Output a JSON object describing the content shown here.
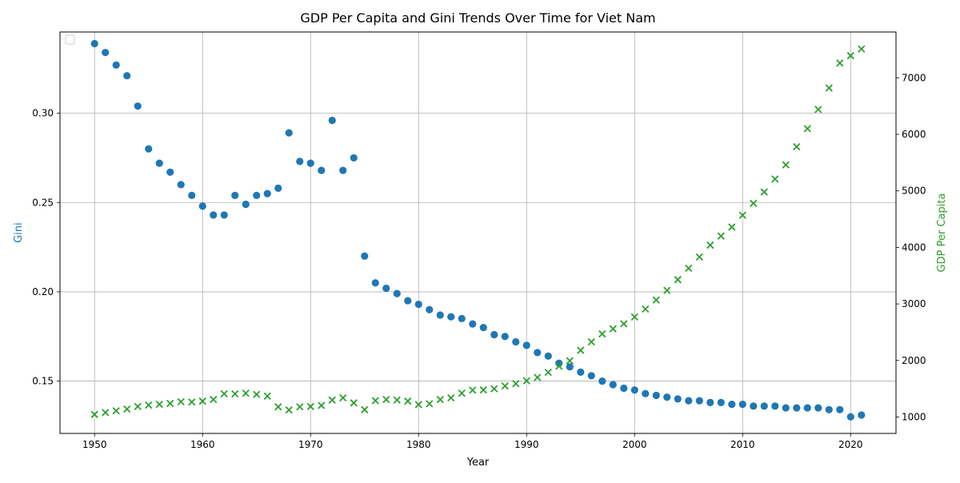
{
  "chart_data": {
    "type": "scatter",
    "title": "GDP Per Capita and Gini Trends Over Time for Viet Nam",
    "xlabel": "Year",
    "ylabel_left": "Gini",
    "ylabel_right": "GDP Per Capita",
    "xlim": [
      1946.8,
      2024.2
    ],
    "ylim_left": [
      0.1207,
      0.3455
    ],
    "ylim_right": [
      710,
      7810
    ],
    "x_ticks": [
      1950,
      1960,
      1970,
      1980,
      1990,
      2000,
      2010,
      2020
    ],
    "y_ticks_left": [
      0.15,
      0.2,
      0.25,
      0.3
    ],
    "y_ticks_right": [
      1000,
      2000,
      3000,
      4000,
      5000,
      6000,
      7000
    ],
    "grid": true,
    "legend": "top-left (empty)",
    "colors": {
      "gini": "#1f77b4",
      "gdp": "#2ca02c"
    },
    "series": [
      {
        "metric": "gini",
        "marker": "circle",
        "color": "#1f77b4",
        "axis": "left",
        "x": [
          1950,
          1951,
          1952,
          1953,
          1954,
          1955,
          1956,
          1957,
          1958,
          1959,
          1960,
          1961,
          1962,
          1963,
          1964,
          1965,
          1966,
          1967,
          1968,
          1969,
          1970,
          1971,
          1972,
          1973,
          1974,
          1975,
          1976,
          1977,
          1978,
          1979,
          1980,
          1981,
          1982,
          1983,
          1984,
          1985,
          1986,
          1987,
          1988,
          1989,
          1990,
          1991,
          1992,
          1993,
          1994,
          1995,
          1996,
          1997,
          1998,
          1999,
          2000,
          2001,
          2002,
          2003,
          2004,
          2005,
          2006,
          2007,
          2008,
          2009,
          2010,
          2011,
          2012,
          2013,
          2014,
          2015,
          2016,
          2017,
          2018,
          2019,
          2020,
          2021
        ],
        "y": [
          0.339,
          0.334,
          0.327,
          0.321,
          0.304,
          0.28,
          0.272,
          0.267,
          0.26,
          0.254,
          0.248,
          0.243,
          0.243,
          0.254,
          0.249,
          0.254,
          0.255,
          0.258,
          0.289,
          0.273,
          0.272,
          0.268,
          0.296,
          0.268,
          0.275,
          0.22,
          0.205,
          0.202,
          0.199,
          0.195,
          0.193,
          0.19,
          0.187,
          0.186,
          0.185,
          0.182,
          0.18,
          0.176,
          0.175,
          0.172,
          0.17,
          0.166,
          0.164,
          0.16,
          0.158,
          0.155,
          0.153,
          0.15,
          0.148,
          0.146,
          0.145,
          0.143,
          0.142,
          0.141,
          0.14,
          0.139,
          0.139,
          0.138,
          0.138,
          0.137,
          0.137,
          0.136,
          0.136,
          0.136,
          0.135,
          0.135,
          0.135,
          0.135,
          0.134,
          0.134,
          0.13,
          0.131
        ]
      },
      {
        "metric": "gdp",
        "marker": "x",
        "color": "#2ca02c",
        "axis": "right",
        "x": [
          1950,
          1951,
          1952,
          1953,
          1954,
          1955,
          1956,
          1957,
          1958,
          1959,
          1960,
          1961,
          1962,
          1963,
          1964,
          1965,
          1966,
          1967,
          1968,
          1969,
          1970,
          1971,
          1972,
          1973,
          1974,
          1975,
          1976,
          1977,
          1978,
          1979,
          1980,
          1981,
          1982,
          1983,
          1984,
          1985,
          1986,
          1987,
          1988,
          1989,
          1990,
          1991,
          1992,
          1993,
          1994,
          1995,
          1996,
          1997,
          1998,
          1999,
          2000,
          2001,
          2002,
          2003,
          2004,
          2005,
          2006,
          2007,
          2008,
          2009,
          2010,
          2011,
          2012,
          2013,
          2014,
          2015,
          2016,
          2017,
          2018,
          2019,
          2020,
          2021
        ],
        "y": [
          1045,
          1080,
          1110,
          1140,
          1185,
          1210,
          1225,
          1240,
          1270,
          1265,
          1280,
          1310,
          1410,
          1410,
          1420,
          1400,
          1370,
          1180,
          1125,
          1180,
          1185,
          1205,
          1300,
          1340,
          1250,
          1130,
          1290,
          1310,
          1300,
          1280,
          1220,
          1235,
          1310,
          1340,
          1420,
          1475,
          1480,
          1500,
          1550,
          1590,
          1640,
          1700,
          1790,
          1900,
          1995,
          2180,
          2330,
          2470,
          2560,
          2650,
          2770,
          2910,
          3070,
          3240,
          3430,
          3630,
          3830,
          4040,
          4200,
          4360,
          4570,
          4780,
          4980,
          5210,
          5460,
          5780,
          6100,
          6440,
          6820,
          7260,
          7390,
          7510
        ]
      }
    ]
  }
}
